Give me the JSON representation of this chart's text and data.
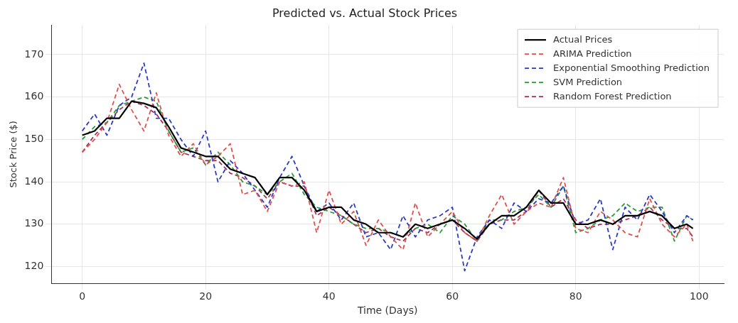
{
  "chart_data": {
    "type": "line",
    "title": "Predicted vs. Actual Stock Prices",
    "xlabel": "Time (Days)",
    "ylabel": "Stock Price ($)",
    "x": [
      0,
      2,
      4,
      6,
      8,
      10,
      12,
      14,
      16,
      18,
      20,
      22,
      24,
      26,
      28,
      30,
      32,
      34,
      36,
      38,
      40,
      42,
      44,
      46,
      48,
      50,
      52,
      54,
      56,
      58,
      60,
      62,
      64,
      66,
      68,
      70,
      72,
      74,
      76,
      78,
      80,
      82,
      84,
      86,
      88,
      90,
      92,
      94,
      96,
      98,
      99
    ],
    "series": [
      {
        "name": "Actual Prices",
        "color": "#000000",
        "line_style": "solid",
        "values": [
          151,
          152,
          155,
          155,
          159,
          158.5,
          157.5,
          153,
          148,
          147,
          146,
          146,
          143,
          142,
          141,
          137,
          141,
          141,
          138,
          133,
          134,
          134,
          131,
          130,
          128,
          128,
          127,
          130,
          129,
          130,
          131,
          129,
          126.5,
          130,
          132,
          132,
          134,
          138,
          135,
          135,
          130,
          130,
          131,
          130,
          132,
          132,
          133,
          132,
          129,
          130,
          129
        ]
      },
      {
        "name": "ARIMA Prediction",
        "color": "#e0504a",
        "line_style": "dashed",
        "values": [
          147,
          150,
          154,
          163,
          157,
          152,
          161,
          151,
          146,
          149,
          144,
          146,
          149,
          137,
          138,
          133,
          140,
          139,
          140,
          128,
          138,
          130,
          133,
          125,
          131,
          127,
          124,
          135,
          127,
          130,
          133,
          128,
          126,
          132,
          137,
          130,
          133,
          135,
          134,
          141,
          129,
          128,
          133,
          131,
          128,
          127,
          136,
          130,
          127,
          130,
          126
        ]
      },
      {
        "name": "Exponential Smoothing Prediction",
        "color": "#2a3ac8",
        "line_style": "dashed",
        "values": [
          152,
          156,
          151,
          158,
          160,
          168,
          155,
          155,
          150,
          146,
          152,
          140,
          145,
          142,
          138,
          134,
          141,
          146,
          139,
          133,
          135,
          131,
          135,
          127,
          128,
          124,
          132,
          127,
          131,
          132,
          134,
          119,
          127,
          131,
          129,
          135,
          133,
          136,
          135,
          139,
          130,
          131,
          136,
          124,
          134,
          131,
          137,
          133,
          128,
          132,
          131
        ]
      },
      {
        "name": "SVM Prediction",
        "color": "#2a9a3a",
        "line_style": "dashed",
        "values": [
          150,
          153,
          154,
          158,
          159,
          160,
          159,
          152,
          147,
          148,
          144,
          147,
          144,
          140,
          139,
          137,
          140,
          142,
          137,
          134,
          133,
          132,
          130,
          129,
          129,
          128,
          127,
          129,
          130,
          128,
          132,
          130,
          126,
          131,
          131,
          133,
          134,
          137,
          134,
          139,
          128,
          129,
          131,
          132,
          135,
          133,
          134,
          134,
          126,
          132,
          131
        ]
      },
      {
        "name": "Random Forest Prediction",
        "color": "#a8305a",
        "line_style": "dashed",
        "values": [
          147,
          151,
          154,
          157,
          159,
          158,
          156,
          152,
          147,
          146,
          145,
          145,
          142,
          141,
          139,
          136,
          140,
          139,
          139,
          132,
          134,
          132,
          130,
          128,
          129,
          127,
          126,
          129,
          128,
          130,
          131,
          128,
          126,
          130,
          131,
          131,
          133,
          138,
          134,
          136,
          131,
          129,
          130,
          130,
          131,
          132,
          134,
          131,
          129,
          129,
          127
        ]
      }
    ],
    "xlim": [
      -5,
      104
    ],
    "xticks": [
      0,
      20,
      40,
      60,
      80,
      100
    ],
    "ylim": [
      116,
      177
    ],
    "yticks": [
      120,
      130,
      140,
      150,
      160,
      170
    ],
    "grid": true,
    "legend": "top right",
    "marker": "none"
  }
}
